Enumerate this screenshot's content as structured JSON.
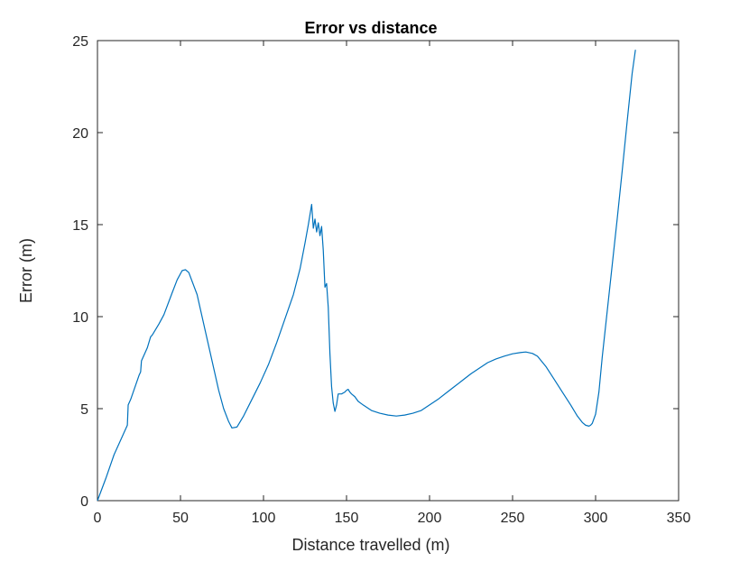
{
  "chart_data": {
    "type": "line",
    "title": "Error vs distance",
    "xlabel": "Distance travelled (m)",
    "ylabel": "Error (m)",
    "xlim": [
      0,
      350
    ],
    "ylim": [
      0,
      25
    ],
    "xticks": [
      0,
      50,
      100,
      150,
      200,
      250,
      300,
      350
    ],
    "yticks": [
      0,
      5,
      10,
      15,
      20,
      25
    ],
    "grid": false,
    "legend": "none",
    "series": [
      {
        "color": "#0072bd",
        "x": [
          0,
          5,
          10,
          15,
          18,
          18.5,
          20,
          25,
          26,
          26.5,
          30,
          32,
          33,
          37,
          40,
          45,
          48,
          51,
          53,
          55,
          60,
          65,
          70,
          73,
          76,
          79,
          81,
          84,
          88,
          93,
          98,
          103,
          108,
          113,
          118,
          122,
          125,
          127,
          129,
          130,
          131,
          132,
          133,
          134,
          135,
          136,
          137,
          138,
          139,
          140,
          141,
          142,
          143,
          144,
          145,
          147,
          149,
          150,
          151,
          152,
          153,
          155,
          157,
          160,
          165,
          170,
          175,
          180,
          185,
          190,
          195,
          200,
          205,
          210,
          215,
          220,
          225,
          230,
          235,
          240,
          245,
          250,
          255,
          258,
          262,
          265,
          270,
          275,
          280,
          285,
          289,
          292,
          294,
          296,
          297,
          298,
          300,
          302,
          304,
          307,
          310,
          313,
          316,
          319,
          322,
          324
        ],
        "y": [
          0,
          1.2,
          2.5,
          3.5,
          4.1,
          5.2,
          5.5,
          6.8,
          7.0,
          7.6,
          8.3,
          8.9,
          9.0,
          9.6,
          10.1,
          11.3,
          12.0,
          12.5,
          12.55,
          12.4,
          11.2,
          9.2,
          7.2,
          6.0,
          5.0,
          4.3,
          3.95,
          4.0,
          4.6,
          5.5,
          6.4,
          7.4,
          8.6,
          9.9,
          11.2,
          12.6,
          14.0,
          15.0,
          16.1,
          14.8,
          15.3,
          14.6,
          15.1,
          14.4,
          14.9,
          13.6,
          11.6,
          11.8,
          10.5,
          8.0,
          6.2,
          5.3,
          4.85,
          5.2,
          5.8,
          5.8,
          5.9,
          6.0,
          6.05,
          5.9,
          5.8,
          5.65,
          5.4,
          5.2,
          4.9,
          4.75,
          4.65,
          4.6,
          4.65,
          4.75,
          4.9,
          5.2,
          5.5,
          5.85,
          6.2,
          6.55,
          6.9,
          7.2,
          7.5,
          7.7,
          7.85,
          7.98,
          8.05,
          8.08,
          8.0,
          7.85,
          7.3,
          6.6,
          5.9,
          5.2,
          4.6,
          4.25,
          4.1,
          4.05,
          4.1,
          4.2,
          4.7,
          5.9,
          7.8,
          10.3,
          12.8,
          15.3,
          17.9,
          20.6,
          23.2,
          24.5
        ]
      }
    ]
  }
}
